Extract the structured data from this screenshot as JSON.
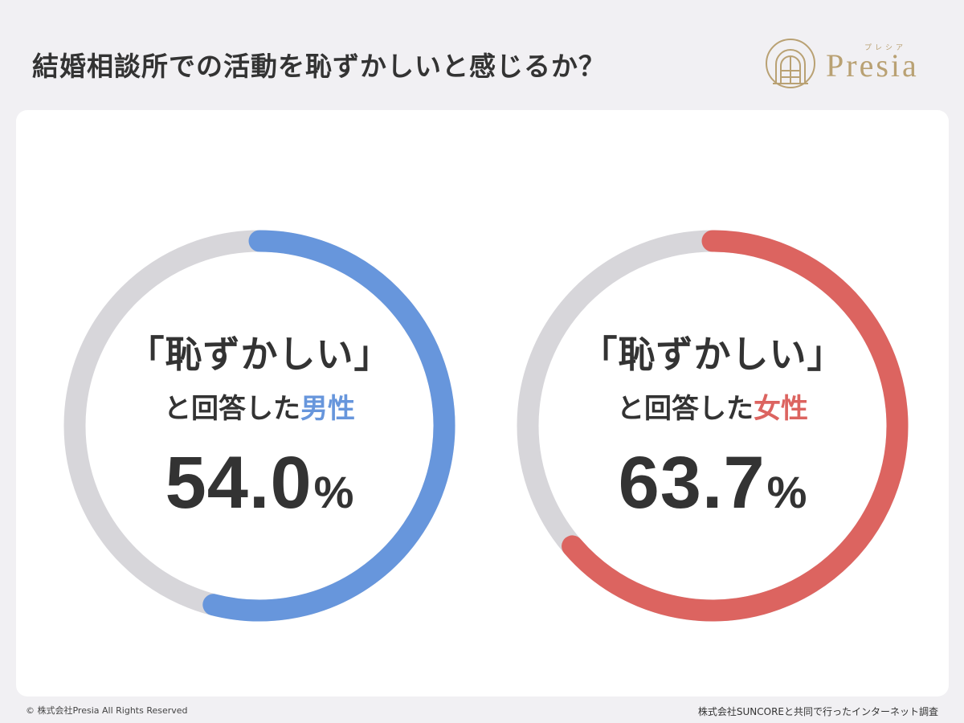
{
  "title": "結婚相談所での活動を恥ずかしいと感じるか？",
  "logo": {
    "name": "Presia",
    "kana": "プレシア",
    "color": "#b9a173"
  },
  "chart_data": [
    {
      "type": "pie",
      "label_main": "「恥ずかしい」",
      "label_prefix": "と回答した",
      "label_highlight": "男性",
      "value": 54.0,
      "value_text": "54.0",
      "unit": "%",
      "color": "#6796dc",
      "track_color": "#d7d6da"
    },
    {
      "type": "pie",
      "label_main": "「恥ずかしい」",
      "label_prefix": "と回答した",
      "label_highlight": "女性",
      "value": 63.7,
      "value_text": "63.7",
      "unit": "%",
      "color": "#dc6460",
      "track_color": "#d7d6da"
    }
  ],
  "footer": {
    "copyright": "© 株式会社Presia All Rights Reserved",
    "source": "株式会社SUNCOREと共同で行ったインターネット調査"
  }
}
